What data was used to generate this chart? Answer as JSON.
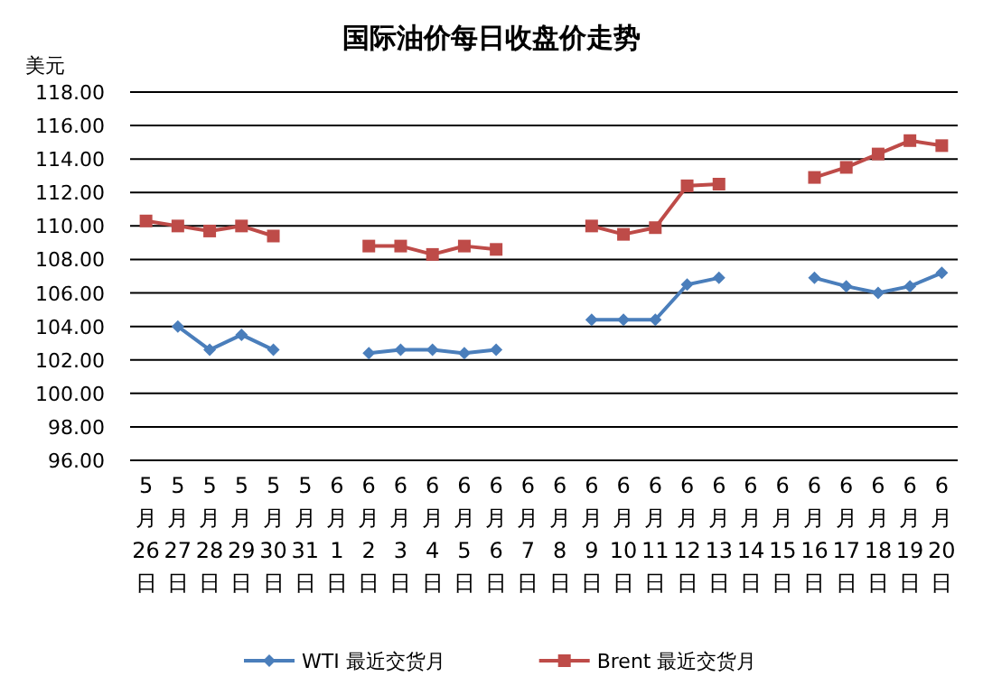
{
  "chart_data": {
    "type": "line",
    "title": "国际油价每日收盘价走势",
    "ylabel": "美元",
    "categories": [
      "5月26日",
      "5月27日",
      "5月28日",
      "5月29日",
      "5月30日",
      "5月31日",
      "6月1日",
      "6月2日",
      "6月3日",
      "6月4日",
      "6月5日",
      "6月6日",
      "6月7日",
      "6月8日",
      "6月9日",
      "6月10日",
      "6月11日",
      "6月12日",
      "6月13日",
      "6月14日",
      "6月15日",
      "6月16日",
      "6月17日",
      "6月18日",
      "6月19日",
      "6月20日"
    ],
    "series": [
      {
        "name": "WTI 最近交货月",
        "color": "#4a7ebb",
        "marker": "diamond",
        "values": [
          null,
          104.0,
          102.6,
          103.5,
          102.6,
          null,
          null,
          102.4,
          102.6,
          102.6,
          102.4,
          102.6,
          null,
          null,
          104.4,
          104.4,
          104.4,
          106.5,
          106.9,
          null,
          null,
          106.9,
          106.4,
          106.0,
          106.4,
          107.2
        ]
      },
      {
        "name": "Brent 最近交货月",
        "color": "#be4b48",
        "marker": "square",
        "values": [
          110.3,
          110.0,
          109.7,
          110.0,
          109.4,
          null,
          null,
          108.8,
          108.8,
          108.3,
          108.8,
          108.6,
          null,
          null,
          110.0,
          109.5,
          109.9,
          112.4,
          112.5,
          null,
          null,
          112.9,
          113.5,
          114.3,
          115.1,
          114.8
        ]
      }
    ],
    "ylim": [
      96,
      118
    ],
    "yticks": [
      {
        "value": 96,
        "label": "96.00"
      },
      {
        "value": 98,
        "label": "98.00"
      },
      {
        "value": 100,
        "label": "100.00"
      },
      {
        "value": 102,
        "label": "102.00"
      },
      {
        "value": 104,
        "label": "104.00"
      },
      {
        "value": 106,
        "label": "106.00"
      },
      {
        "value": 108,
        "label": "108.00"
      },
      {
        "value": 110,
        "label": "110.00"
      },
      {
        "value": 112,
        "label": "112.00"
      },
      {
        "value": 114,
        "label": "114.00"
      },
      {
        "value": 116,
        "label": "116.00"
      },
      {
        "value": 118,
        "label": "118.00"
      }
    ],
    "grid": "y",
    "legend": "bottom"
  }
}
